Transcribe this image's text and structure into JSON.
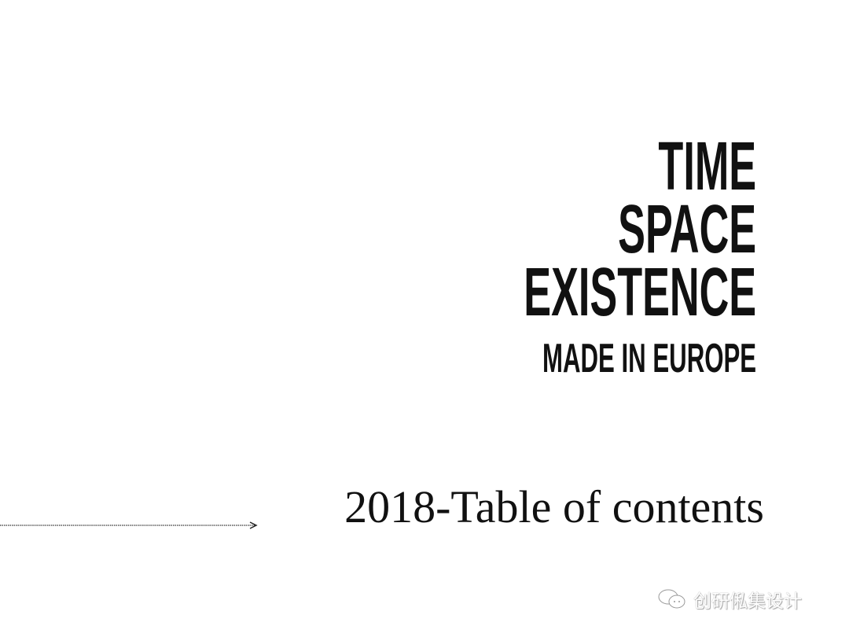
{
  "title_lines": [
    "TIME",
    "SPACE",
    "EXISTENCE"
  ],
  "tagline": "MADE IN EUROPE",
  "subtitle": "2018-Table of contents",
  "watermark": {
    "icon": "wechat-icon",
    "text": "创研俬集设计"
  },
  "colors": {
    "text": "#111111",
    "background": "#ffffff"
  }
}
